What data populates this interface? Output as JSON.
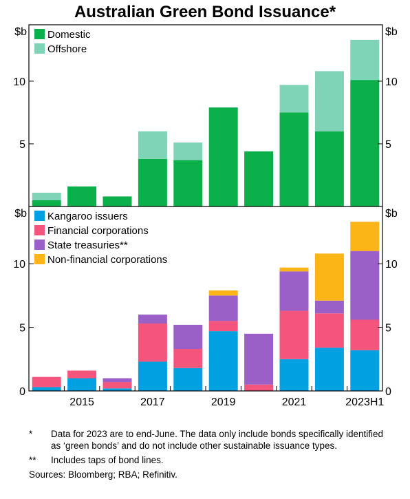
{
  "title": "Australian Green Bond Issuance*",
  "chart_data": [
    {
      "type": "bar",
      "stacked": true,
      "panel": "top",
      "unit_left": "$b",
      "unit_right": "$b",
      "x": [
        2014,
        2015,
        2016,
        2017,
        2018,
        2019,
        2020,
        2021,
        2022,
        2023
      ],
      "x_tick_labels": [
        "2015",
        "2017",
        "2019",
        "2021",
        "2023H1"
      ],
      "ylim": [
        0,
        14.5
      ],
      "y_ticks": [
        5,
        10
      ],
      "grid": false,
      "legend": "top-left",
      "series": [
        {
          "name": "Domestic",
          "color": "#0bb04b",
          "values": [
            0.5,
            1.6,
            0.8,
            3.8,
            3.7,
            7.9,
            4.4,
            7.5,
            6.0,
            10.1
          ]
        },
        {
          "name": "Offshore",
          "color": "#7fd3b6",
          "values": [
            0.6,
            0.0,
            0.0,
            2.2,
            1.4,
            0.0,
            0.0,
            2.2,
            4.8,
            3.2
          ]
        }
      ]
    },
    {
      "type": "bar",
      "stacked": true,
      "panel": "bottom",
      "unit_left": "$b",
      "unit_right": "$b",
      "x": [
        2014,
        2015,
        2016,
        2017,
        2018,
        2019,
        2020,
        2021,
        2022,
        2023
      ],
      "x_tick_labels": [
        "2015",
        "2017",
        "2019",
        "2021",
        "2023H1"
      ],
      "ylim": [
        0,
        14.5
      ],
      "y_ticks": [
        0,
        5,
        10
      ],
      "grid": false,
      "legend": "top-left",
      "series": [
        {
          "name": "Kangaroo issuers",
          "color": "#00a0e1",
          "values": [
            0.3,
            1.0,
            0.2,
            2.3,
            1.8,
            4.7,
            0.0,
            2.5,
            3.4,
            3.2
          ]
        },
        {
          "name": "Financial corporations",
          "color": "#f4557d",
          "values": [
            0.8,
            0.6,
            0.5,
            3.0,
            1.5,
            0.8,
            0.5,
            3.8,
            2.7,
            2.4
          ]
        },
        {
          "name": "State treasuries**",
          "color": "#9b5fc8",
          "values": [
            0.0,
            0.0,
            0.3,
            0.7,
            1.9,
            2.0,
            4.0,
            3.1,
            1.0,
            5.4
          ]
        },
        {
          "name": "Non-financial corporations",
          "color": "#fbb516",
          "values": [
            0.0,
            0.0,
            0.0,
            0.0,
            0.0,
            0.4,
            0.0,
            0.3,
            3.7,
            2.3
          ]
        }
      ]
    }
  ],
  "notes": [
    {
      "mark": "*",
      "text": "Data for 2023 are to end-June. The data only include bonds specifically identified as ‘green bonds’ and do not include other sustainable issuance types."
    },
    {
      "mark": "**",
      "text": "Includes taps of bond lines."
    }
  ],
  "sources": "Sources: Bloomberg; RBA; Refinitiv."
}
